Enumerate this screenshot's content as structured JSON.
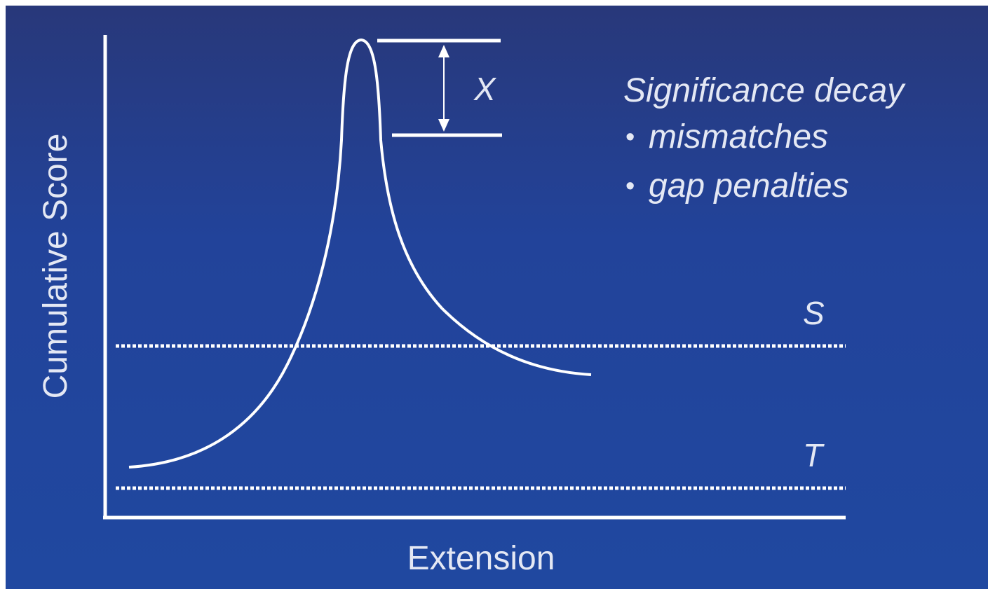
{
  "diagram": {
    "y_axis_label": "Cumulative Score",
    "x_axis_label": "Extension",
    "drop_label": "X",
    "threshold_upper_label": "S",
    "threshold_lower_label": "T",
    "annotation": {
      "title": "Significance decay",
      "items": [
        "mismatches",
        "gap penalties"
      ],
      "bullet": "•"
    }
  },
  "colors": {
    "background_top": "#28387a",
    "background_bottom": "#2048a0",
    "foreground": "#ffffff"
  }
}
